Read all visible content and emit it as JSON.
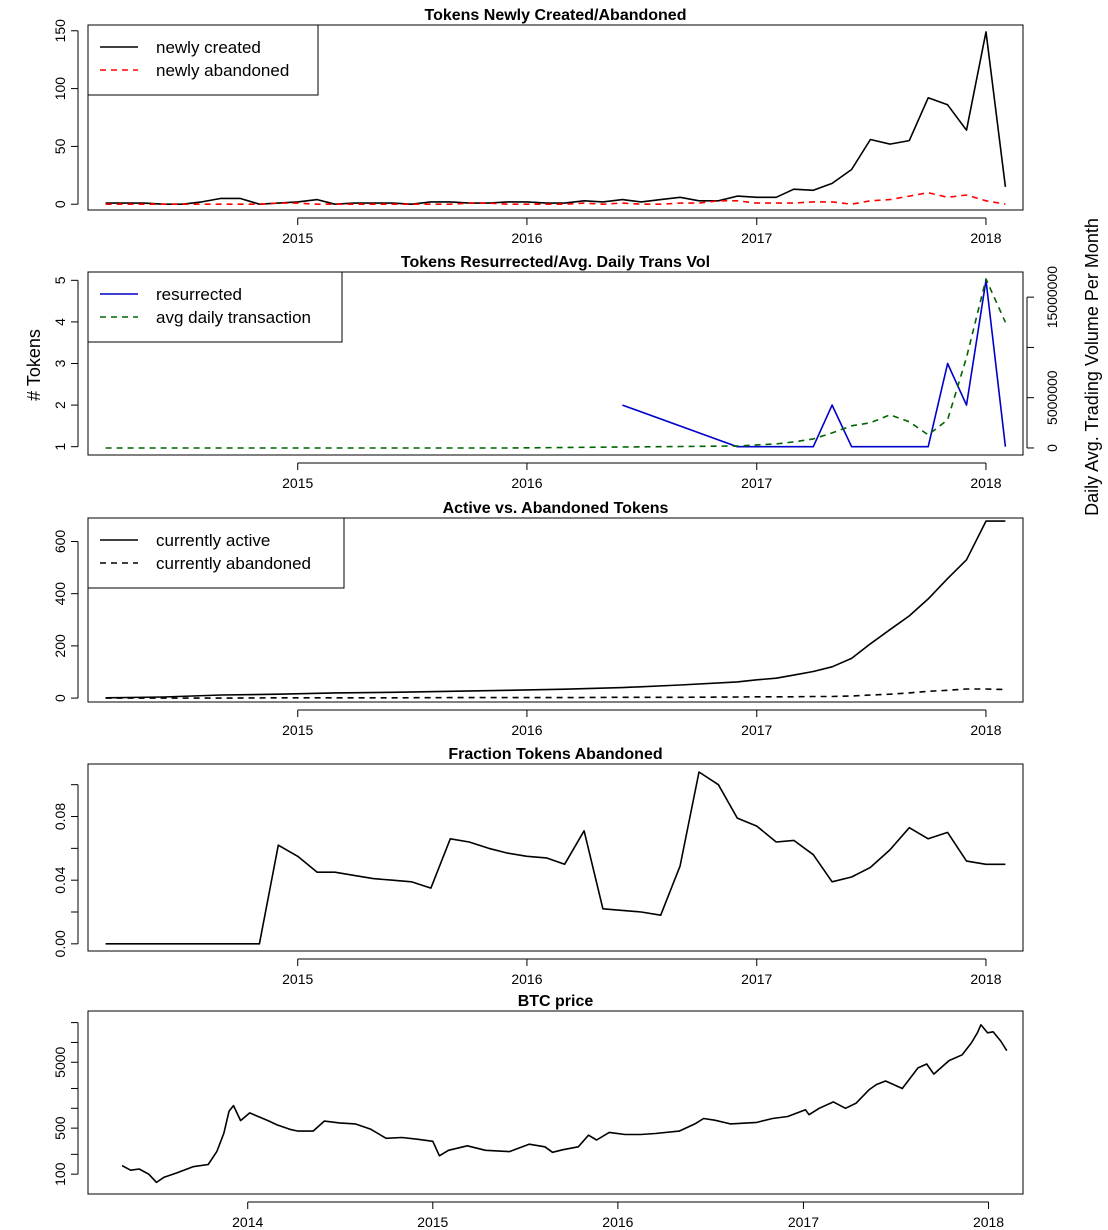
{
  "figure": {
    "left_ylabel": "# Tokens",
    "right_ylabel": "Daily Avg. Trading Volume Per Month"
  },
  "chart_data": [
    {
      "type": "line",
      "title": "Tokens Newly Created/Abandoned",
      "xlim": [
        "2014-02-01",
        "2018-03-01"
      ],
      "ylim": [
        -5,
        155
      ],
      "x_ticks": [
        "2015",
        "2016",
        "2017",
        "2018"
      ],
      "y_ticks": [
        "0",
        "50",
        "100",
        "150"
      ],
      "x_ticks_values": [
        "2015-01-01",
        "2016-01-01",
        "2017-01-01",
        "2018-01-01"
      ],
      "y_ticks_values": [
        0,
        50,
        100,
        150
      ],
      "legend": {
        "position": "top-left",
        "entries": [
          "newly created",
          "newly abandoned"
        ]
      },
      "series": [
        {
          "name": "newly created",
          "color": "#000000",
          "dash": "solid",
          "x": [
            "2014-03",
            "2014-04",
            "2014-05",
            "2014-06",
            "2014-07",
            "2014-08",
            "2014-09",
            "2014-10",
            "2014-11",
            "2014-12",
            "2015-01",
            "2015-02",
            "2015-03",
            "2015-04",
            "2015-05",
            "2015-06",
            "2015-07",
            "2015-08",
            "2015-09",
            "2015-10",
            "2015-11",
            "2015-12",
            "2016-01",
            "2016-02",
            "2016-03",
            "2016-04",
            "2016-05",
            "2016-06",
            "2016-07",
            "2016-08",
            "2016-09",
            "2016-10",
            "2016-11",
            "2016-12",
            "2017-01",
            "2017-02",
            "2017-03",
            "2017-04",
            "2017-05",
            "2017-06",
            "2017-07",
            "2017-08",
            "2017-09",
            "2017-10",
            "2017-11",
            "2017-12",
            "2018-01",
            "2018-02"
          ],
          "values": [
            1,
            1,
            1,
            0,
            0,
            2,
            5,
            5,
            0,
            1,
            2,
            4,
            0,
            1,
            1,
            1,
            0,
            2,
            2,
            1,
            1,
            2,
            2,
            1,
            1,
            3,
            2,
            4,
            2,
            4,
            6,
            3,
            3,
            7,
            6,
            6,
            13,
            12,
            18,
            30,
            56,
            52,
            55,
            92,
            86,
            64,
            149,
            15
          ]
        },
        {
          "name": "newly abandoned",
          "color": "#ff0000",
          "dash": "dashed",
          "x": [
            "2014-03",
            "2014-04",
            "2014-05",
            "2014-06",
            "2014-07",
            "2014-08",
            "2014-09",
            "2014-10",
            "2014-11",
            "2014-12",
            "2015-01",
            "2015-02",
            "2015-03",
            "2015-04",
            "2015-05",
            "2015-06",
            "2015-07",
            "2015-08",
            "2015-09",
            "2015-10",
            "2015-11",
            "2015-12",
            "2016-01",
            "2016-02",
            "2016-03",
            "2016-04",
            "2016-05",
            "2016-06",
            "2016-07",
            "2016-08",
            "2016-09",
            "2016-10",
            "2016-11",
            "2016-12",
            "2017-01",
            "2017-02",
            "2017-03",
            "2017-04",
            "2017-05",
            "2017-06",
            "2017-07",
            "2017-08",
            "2017-09",
            "2017-10",
            "2017-11",
            "2017-12",
            "2018-01",
            "2018-02"
          ],
          "values": [
            0,
            0,
            0,
            0,
            0,
            0,
            0,
            0,
            0,
            1,
            1,
            0,
            0,
            0,
            0,
            0,
            0,
            0,
            0,
            1,
            1,
            0,
            0,
            0,
            0,
            1,
            0,
            1,
            0,
            0,
            1,
            1,
            3,
            3,
            1,
            1,
            1,
            2,
            2,
            0,
            3,
            4,
            7,
            10,
            6,
            8,
            3,
            0
          ]
        }
      ]
    },
    {
      "type": "line",
      "title": "Tokens Resurrected/Avg. Daily Trans Vol",
      "xlim": [
        "2014-02-01",
        "2018-03-01"
      ],
      "ylim": [
        0.8,
        5.2
      ],
      "y2lim": [
        -700000,
        17500000
      ],
      "x_ticks": [
        "2015",
        "2016",
        "2017",
        "2018"
      ],
      "y_ticks": [
        "1",
        "2",
        "3",
        "4",
        "5"
      ],
      "y2_ticks": [
        "0",
        "5000000",
        "15000000"
      ],
      "x_ticks_values": [
        "2015-01-01",
        "2016-01-01",
        "2017-01-01",
        "2018-01-01"
      ],
      "y_ticks_values": [
        1,
        2,
        3,
        4,
        5
      ],
      "y2_ticks_values": [
        0,
        5000000,
        15000000
      ],
      "y2_minor_ticks_values": [
        10000000
      ],
      "legend": {
        "position": "top-left",
        "entries": [
          "resurrected",
          "avg daily transaction"
        ]
      },
      "series": [
        {
          "name": "resurrected",
          "color": "#0000cc",
          "dash": "solid",
          "axis": "left",
          "x": [
            "2016-06",
            "2016-12",
            "2017-01",
            "2017-02",
            "2017-03",
            "2017-04",
            "2017-05",
            "2017-06",
            "2017-07",
            "2017-08",
            "2017-09",
            "2017-10",
            "2017-11",
            "2017-12",
            "2018-01",
            "2018-02"
          ],
          "values": [
            2,
            1,
            1,
            1,
            1,
            1,
            2,
            1,
            1,
            1,
            1,
            1,
            3,
            2,
            5,
            1
          ]
        },
        {
          "name": "avg daily transaction",
          "color": "#006400",
          "dash": "dashed",
          "axis": "right",
          "x": [
            "2014-03",
            "2014-06",
            "2014-09",
            "2014-12",
            "2015-03",
            "2015-06",
            "2015-09",
            "2015-12",
            "2016-03",
            "2016-06",
            "2016-09",
            "2016-12",
            "2017-01",
            "2017-02",
            "2017-03",
            "2017-04",
            "2017-05",
            "2017-06",
            "2017-07",
            "2017-08",
            "2017-09",
            "2017-10",
            "2017-11",
            "2017-12",
            "2018-01",
            "2018-02"
          ],
          "values": [
            0,
            0,
            0,
            0,
            0,
            0,
            0,
            0,
            50000,
            100000,
            150000,
            200000,
            300000,
            400000,
            600000,
            900000,
            1500000,
            2200000,
            2500000,
            3300000,
            2600000,
            1300000,
            2800000,
            9000000,
            16800000,
            12500000
          ]
        }
      ]
    },
    {
      "type": "line",
      "title": "Active vs. Abandoned Tokens",
      "xlim": [
        "2014-02-01",
        "2018-03-01"
      ],
      "ylim": [
        -15,
        690
      ],
      "x_ticks": [
        "2015",
        "2016",
        "2017",
        "2018"
      ],
      "y_ticks": [
        "0",
        "200",
        "400",
        "600"
      ],
      "x_ticks_values": [
        "2015-01-01",
        "2016-01-01",
        "2017-01-01",
        "2018-01-01"
      ],
      "y_ticks_values": [
        0,
        200,
        400,
        600
      ],
      "legend": {
        "position": "top-left",
        "entries": [
          "currently active",
          "currently abandoned"
        ]
      },
      "series": [
        {
          "name": "currently active",
          "color": "#000000",
          "dash": "solid",
          "x": [
            "2014-03",
            "2014-06",
            "2014-09",
            "2014-12",
            "2015-03",
            "2015-06",
            "2015-09",
            "2015-12",
            "2016-03",
            "2016-06",
            "2016-09",
            "2016-12",
            "2017-01",
            "2017-02",
            "2017-03",
            "2017-04",
            "2017-05",
            "2017-06",
            "2017-07",
            "2017-08",
            "2017-09",
            "2017-10",
            "2017-11",
            "2017-12",
            "2018-01",
            "2018-02"
          ],
          "values": [
            1,
            4,
            12,
            15,
            20,
            22,
            26,
            30,
            34,
            40,
            50,
            62,
            70,
            76,
            88,
            102,
            120,
            152,
            208,
            262,
            315,
            380,
            458,
            530,
            678,
            678
          ]
        },
        {
          "name": "currently abandoned",
          "color": "#000000",
          "dash": "dashed",
          "x": [
            "2014-03",
            "2014-06",
            "2014-09",
            "2014-12",
            "2015-03",
            "2015-06",
            "2015-09",
            "2015-12",
            "2016-03",
            "2016-06",
            "2016-09",
            "2016-12",
            "2017-01",
            "2017-02",
            "2017-03",
            "2017-04",
            "2017-05",
            "2017-06",
            "2017-07",
            "2017-08",
            "2017-09",
            "2017-10",
            "2017-11",
            "2017-12",
            "2018-01",
            "2018-02"
          ],
          "values": [
            0,
            0,
            0,
            1,
            1,
            1,
            2,
            2,
            2,
            3,
            3,
            4,
            5,
            5,
            5,
            6,
            6,
            8,
            12,
            15,
            20,
            26,
            30,
            35,
            35,
            33
          ]
        }
      ]
    },
    {
      "type": "line",
      "title": "Fraction Tokens Abandoned",
      "xlim": [
        "2014-02-01",
        "2018-03-01"
      ],
      "ylim": [
        -0.0045,
        0.113
      ],
      "x_ticks": [
        "2015",
        "2016",
        "2017",
        "2018"
      ],
      "y_ticks": [
        "0.00",
        "0.04",
        "0.08"
      ],
      "x_ticks_values": [
        "2015-01-01",
        "2016-01-01",
        "2017-01-01",
        "2018-01-01"
      ],
      "y_ticks_values": [
        0,
        0.04,
        0.08
      ],
      "y_minor_ticks_values": [
        0.02,
        0.06,
        0.1
      ],
      "series": [
        {
          "color": "#000000",
          "dash": "solid",
          "x": [
            "2014-03",
            "2014-11",
            "2014-12",
            "2015-01",
            "2015-02",
            "2015-03",
            "2015-04",
            "2015-05",
            "2015-06",
            "2015-07",
            "2015-08",
            "2015-09",
            "2015-10",
            "2015-11",
            "2015-12",
            "2016-01",
            "2016-02",
            "2016-03",
            "2016-04",
            "2016-05",
            "2016-06",
            "2016-07",
            "2016-08",
            "2016-09",
            "2016-10",
            "2016-11",
            "2016-12",
            "2017-01",
            "2017-02",
            "2017-03",
            "2017-04",
            "2017-05",
            "2017-06",
            "2017-07",
            "2017-08",
            "2017-09",
            "2017-10",
            "2017-11",
            "2017-12",
            "2018-01",
            "2018-02"
          ],
          "values": [
            0,
            0,
            0.062,
            0.055,
            0.045,
            0.045,
            0.043,
            0.041,
            0.04,
            0.039,
            0.035,
            0.066,
            0.064,
            0.06,
            0.057,
            0.055,
            0.054,
            0.05,
            0.071,
            0.022,
            0.021,
            0.02,
            0.018,
            0.049,
            0.108,
            0.1,
            0.079,
            0.074,
            0.064,
            0.065,
            0.056,
            0.039,
            0.042,
            0.048,
            0.059,
            0.073,
            0.066,
            0.07,
            0.052,
            0.05,
            0.05
          ]
        }
      ]
    },
    {
      "type": "line",
      "title": "BTC price",
      "xlim": [
        "2013-02-20",
        "2018-03-10"
      ],
      "ylim": [
        50,
        30000
      ],
      "y_scale": "log",
      "x_ticks": [
        "2014",
        "2015",
        "2016",
        "2017",
        "2018"
      ],
      "y_ticks": [
        "100",
        "500",
        "5000"
      ],
      "x_ticks_values": [
        "2014-01-01",
        "2015-01-01",
        "2016-01-01",
        "2017-01-01",
        "2018-01-01"
      ],
      "y_ticks_values": [
        100,
        500,
        5000
      ],
      "y_minor_ticks_values": [
        200,
        1000,
        2000,
        10000,
        20000
      ],
      "series": [
        {
          "color": "#000000",
          "dash": "solid",
          "x": [
            "2013-04-28",
            "2013-05-15",
            "2013-06-01",
            "2013-06-20",
            "2013-07-05",
            "2013-07-20",
            "2013-08-15",
            "2013-09-15",
            "2013-10-15",
            "2013-11-01",
            "2013-11-15",
            "2013-11-25",
            "2013-12-04",
            "2013-12-18",
            "2014-01-05",
            "2014-02-10",
            "2014-02-28",
            "2014-03-25",
            "2014-04-10",
            "2014-05-10",
            "2014-06-01",
            "2014-07-01",
            "2014-08-01",
            "2014-09-01",
            "2014-10-01",
            "2014-11-01",
            "2014-12-01",
            "2015-01-01",
            "2015-01-14",
            "2015-02-01",
            "2015-03-10",
            "2015-04-15",
            "2015-06-01",
            "2015-07-10",
            "2015-08-10",
            "2015-08-25",
            "2015-09-15",
            "2015-10-15",
            "2015-11-04",
            "2015-11-20",
            "2015-12-15",
            "2016-01-15",
            "2016-02-15",
            "2016-03-15",
            "2016-05-01",
            "2016-06-01",
            "2016-06-18",
            "2016-07-10",
            "2016-08-10",
            "2016-10-01",
            "2016-11-01",
            "2016-12-01",
            "2017-01-05",
            "2017-01-12",
            "2017-02-01",
            "2017-03-01",
            "2017-03-25",
            "2017-04-15",
            "2017-05-10",
            "2017-05-25",
            "2017-06-12",
            "2017-07-15",
            "2017-08-15",
            "2017-09-01",
            "2017-09-15",
            "2017-10-15",
            "2017-11-10",
            "2017-11-28",
            "2017-12-10",
            "2017-12-17",
            "2017-12-30",
            "2018-01-10",
            "2018-01-25",
            "2018-02-06"
          ],
          "values": [
            135,
            115,
            120,
            100,
            75,
            90,
            105,
            130,
            140,
            220,
            420,
            900,
            1100,
            650,
            850,
            650,
            560,
            480,
            450,
            450,
            640,
            600,
            580,
            480,
            350,
            360,
            340,
            315,
            190,
            230,
            270,
            230,
            220,
            285,
            260,
            215,
            235,
            260,
            390,
            330,
            430,
            400,
            400,
            415,
            450,
            580,
            700,
            660,
            580,
            610,
            700,
            750,
            950,
            800,
            1000,
            1250,
            1000,
            1200,
            1900,
            2300,
            2600,
            2000,
            4100,
            4700,
            3300,
            5300,
            6500,
            9800,
            14000,
            18500,
            14000,
            14500,
            10500,
            7500
          ]
        }
      ]
    }
  ]
}
